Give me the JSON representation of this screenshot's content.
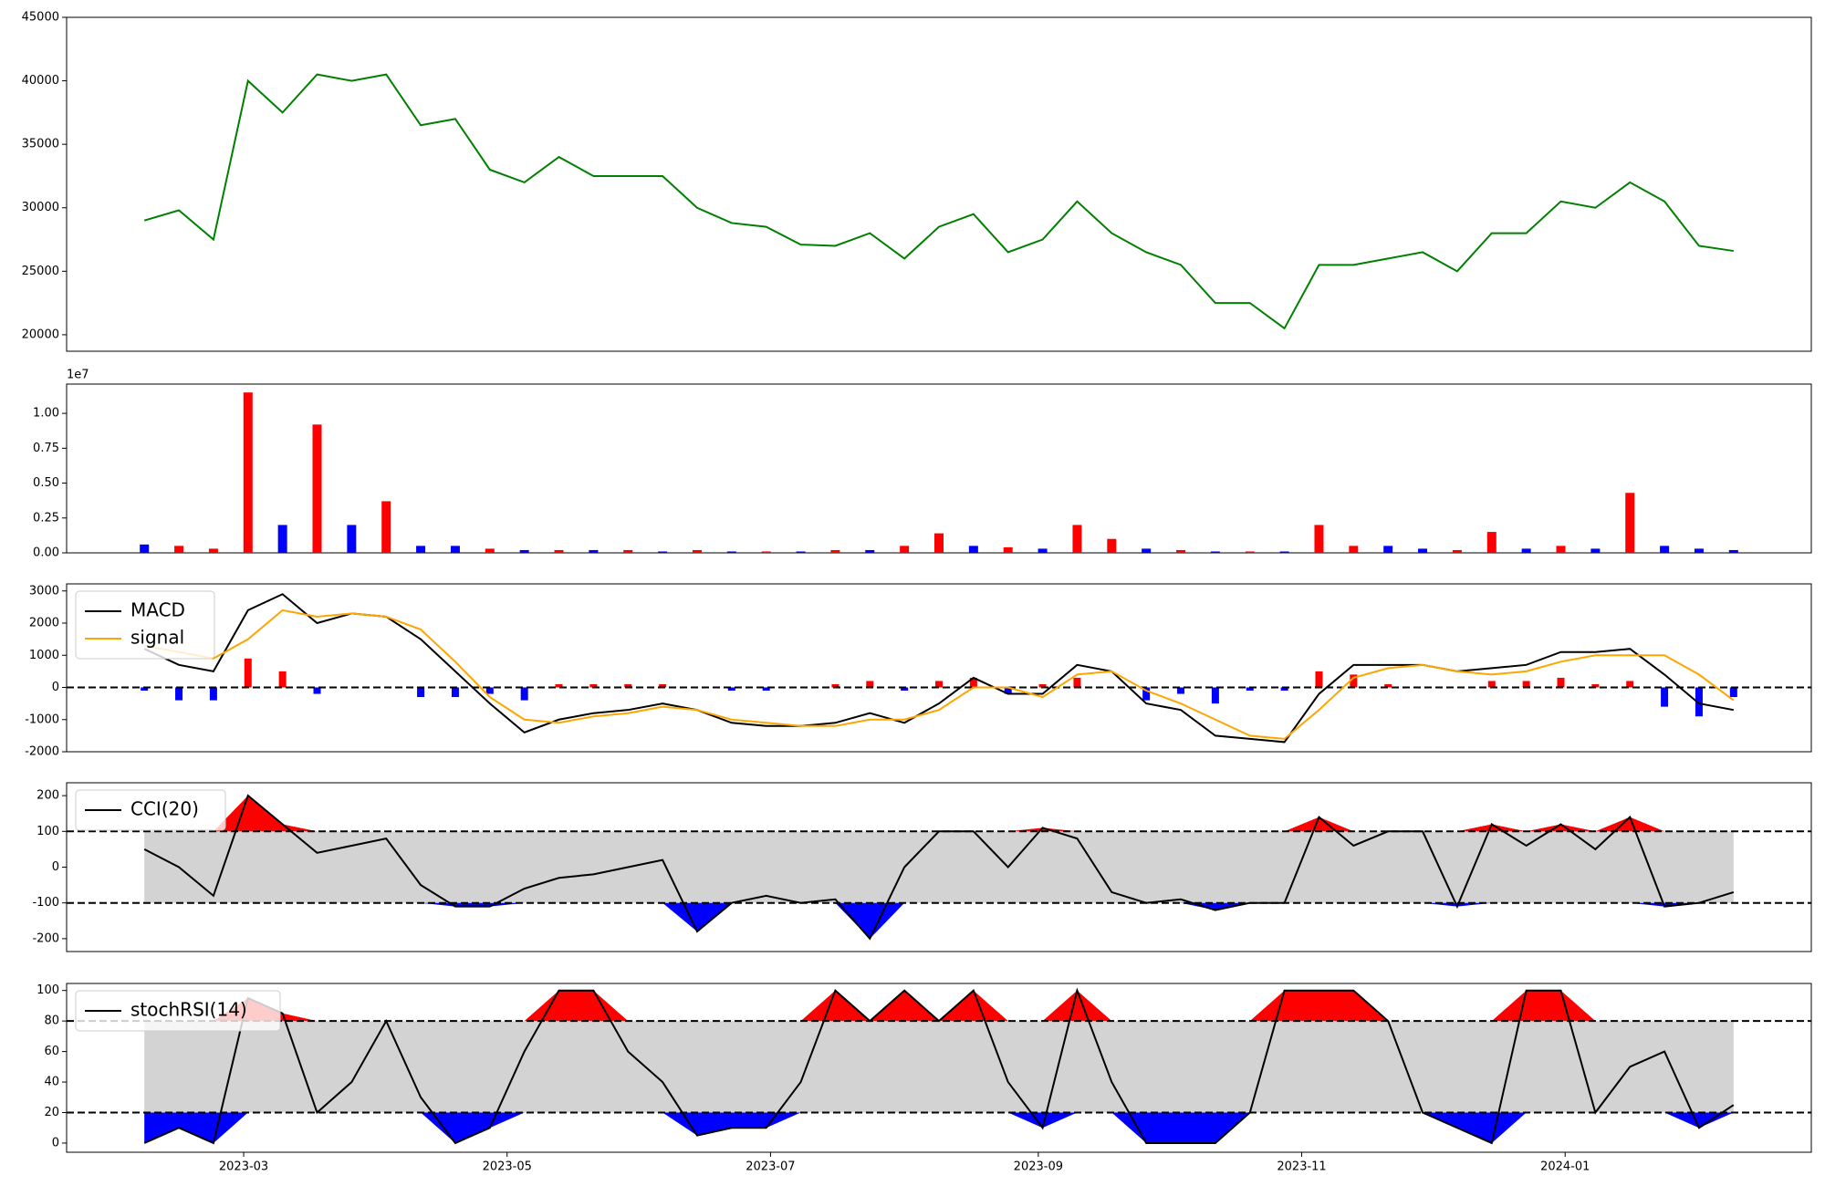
{
  "chart_data": [
    {
      "type": "line",
      "x": [
        "2023-02-06",
        "2023-02-14",
        "2023-02-22",
        "2023-03-02",
        "2023-03-10",
        "2023-03-18",
        "2023-03-26",
        "2023-04-03",
        "2023-04-11",
        "2023-04-19",
        "2023-04-27",
        "2023-05-05",
        "2023-05-13",
        "2023-05-21",
        "2023-05-29",
        "2023-06-06",
        "2023-06-14",
        "2023-06-22",
        "2023-06-30",
        "2023-07-08",
        "2023-07-16",
        "2023-07-24",
        "2023-08-01",
        "2023-08-09",
        "2023-08-17",
        "2023-08-25",
        "2023-09-02",
        "2023-09-10",
        "2023-09-18",
        "2023-09-26",
        "2023-10-04",
        "2023-10-12",
        "2023-10-20",
        "2023-10-28",
        "2023-11-05",
        "2023-11-13",
        "2023-11-21",
        "2023-11-29",
        "2023-12-07",
        "2023-12-15",
        "2023-12-23",
        "2023-12-31",
        "2024-01-08",
        "2024-01-16",
        "2024-01-24",
        "2024-02-01",
        "2024-02-09"
      ],
      "values": [
        29000,
        29800,
        27500,
        40000,
        37500,
        40500,
        40000,
        40500,
        36500,
        37000,
        33000,
        32000,
        34000,
        32500,
        32500,
        32500,
        30000,
        28800,
        28500,
        27100,
        27000,
        28000,
        26000,
        28500,
        29500,
        26500,
        27500,
        30500,
        28000,
        26500,
        25500,
        22500,
        22500,
        20500,
        25500,
        25500,
        26000,
        26500,
        25000,
        28000,
        28000,
        30500,
        30000,
        32000,
        30500,
        27000,
        26600
      ],
      "color": "green",
      "ylim": [
        18700,
        45000
      ],
      "yticks": [
        20000,
        25000,
        30000,
        35000,
        40000,
        45000
      ]
    },
    {
      "type": "bar",
      "offset_text": "1e7",
      "values": [
        0.06,
        0.05,
        0.03,
        1.15,
        0.2,
        0.92,
        0.2,
        0.37,
        0.05,
        0.05,
        0.03,
        0.02,
        0.02,
        0.02,
        0.02,
        0.01,
        0.02,
        0.01,
        0.01,
        0.01,
        0.02,
        0.02,
        0.05,
        0.14,
        0.05,
        0.04,
        0.03,
        0.2,
        0.1,
        0.03,
        0.02,
        0.01,
        0.01,
        0.01,
        0.2,
        0.05,
        0.05,
        0.03,
        0.02,
        0.15,
        0.03,
        0.05,
        0.03,
        0.43,
        0.05,
        0.03,
        0.02
      ],
      "colors": [
        "blue",
        "red",
        "red",
        "red",
        "blue",
        "red",
        "blue",
        "red",
        "blue",
        "blue",
        "red",
        "blue",
        "red",
        "blue",
        "red",
        "blue",
        "red",
        "blue",
        "red",
        "blue",
        "red",
        "blue",
        "red",
        "red",
        "blue",
        "red",
        "blue",
        "red",
        "red",
        "blue",
        "red",
        "blue",
        "red",
        "blue",
        "red",
        "red",
        "blue",
        "blue",
        "red",
        "red",
        "blue",
        "red",
        "blue",
        "red",
        "blue",
        "blue",
        "blue"
      ],
      "ylim": [
        0,
        1.21
      ],
      "yticks": [
        {
          "value": 0,
          "label": "0.00"
        },
        {
          "value": 0.25,
          "label": "0.25"
        },
        {
          "value": 0.5,
          "label": "0.50"
        },
        {
          "value": 0.75,
          "label": "0.75"
        },
        {
          "value": 1,
          "label": "1.00"
        }
      ]
    },
    {
      "type": "line",
      "legend": "upper left",
      "hlines": [
        0
      ],
      "series": [
        {
          "name": "MACD",
          "color": "black",
          "values": [
            1200,
            700,
            500,
            2400,
            2900,
            2000,
            2300,
            2200,
            1500,
            500,
            -500,
            -1400,
            -1000,
            -800,
            -700,
            -500,
            -700,
            -1100,
            -1200,
            -1200,
            -1100,
            -800,
            -1100,
            -500,
            300,
            -200,
            -200,
            700,
            500,
            -500,
            -700,
            -1500,
            -1600,
            -1700,
            -200,
            700,
            700,
            700,
            500,
            600,
            700,
            1100,
            1100,
            1200,
            400,
            -500,
            -700
          ]
        },
        {
          "name": "signal",
          "color": "orange",
          "values": [
            1300,
            1100,
            900,
            1500,
            2400,
            2200,
            2300,
            2200,
            1800,
            800,
            -300,
            -1000,
            -1100,
            -900,
            -800,
            -600,
            -700,
            -1000,
            -1100,
            -1200,
            -1200,
            -1000,
            -1000,
            -700,
            0,
            0,
            -300,
            400,
            500,
            -100,
            -500,
            -1000,
            -1500,
            -1600,
            -700,
            300,
            600,
            700,
            500,
            400,
            500,
            800,
            1000,
            1000,
            1000,
            400,
            -400
          ]
        },
        {
          "type": "bar",
          "pos_color": "red",
          "neg_color": "blue",
          "values": [
            -100,
            -400,
            -400,
            900,
            500,
            -200,
            0,
            0,
            -300,
            -300,
            -200,
            -400,
            100,
            100,
            100,
            100,
            0,
            -100,
            -100,
            0,
            100,
            200,
            -100,
            200,
            300,
            -200,
            100,
            300,
            0,
            -400,
            -200,
            -500,
            -100,
            -100,
            500,
            400,
            100,
            0,
            0,
            200,
            200,
            300,
            100,
            200,
            -600,
            -900,
            -300
          ]
        }
      ],
      "ylim": [
        -2000,
        3220
      ],
      "yticks": [
        -2000,
        -1000,
        0,
        1000,
        2000,
        3000
      ]
    },
    {
      "type": "line",
      "legend": "upper left",
      "hlines": [
        100,
        -100
      ],
      "band_color": "#d3d3d3",
      "upper_color": "red",
      "lower_color": "blue",
      "series": [
        {
          "name": "CCI(20)",
          "color": "black",
          "values": [
            50,
            0,
            -80,
            200,
            120,
            40,
            60,
            80,
            -50,
            -110,
            -110,
            -60,
            -30,
            -20,
            0,
            20,
            -180,
            -100,
            -80,
            -100,
            -90,
            -200,
            0,
            100,
            100,
            0,
            110,
            80,
            -70,
            -100,
            -90,
            -120,
            -100,
            -100,
            140,
            60,
            100,
            100,
            -110,
            120,
            60,
            120,
            50,
            140,
            -110,
            -100,
            -70
          ]
        }
      ],
      "ylim": [
        -236,
        236
      ],
      "yticks": [
        -200,
        -100,
        0,
        100,
        200
      ]
    },
    {
      "type": "line",
      "legend": "upper left",
      "hlines": [
        80,
        20
      ],
      "band_color": "#d3d3d3",
      "upper_color": "red",
      "lower_color": "blue",
      "series": [
        {
          "name": "stochRSI(14)",
          "color": "black",
          "values": [
            0,
            10,
            0,
            95,
            85,
            20,
            40,
            80,
            30,
            0,
            10,
            60,
            100,
            100,
            60,
            40,
            5,
            10,
            10,
            40,
            100,
            80,
            100,
            80,
            100,
            40,
            10,
            100,
            40,
            0,
            0,
            0,
            20,
            100,
            100,
            100,
            80,
            20,
            10,
            0,
            100,
            100,
            20,
            50,
            60,
            10,
            25
          ]
        }
      ],
      "ylim": [
        -6,
        104.6
      ],
      "yticks": [
        0,
        20,
        40,
        60,
        80,
        100
      ],
      "xlim": [
        "2023-01-19",
        "2024-02-27"
      ],
      "xticks": [
        {
          "value": "2023-03-01",
          "label": "2023-03"
        },
        {
          "value": "2023-05-01",
          "label": "2023-05"
        },
        {
          "value": "2023-07-01",
          "label": "2023-07"
        },
        {
          "value": "2023-09-01",
          "label": "2023-09"
        },
        {
          "value": "2023-11-01",
          "label": "2023-11"
        },
        {
          "value": "2024-01-01",
          "label": "2024-01"
        }
      ]
    }
  ]
}
